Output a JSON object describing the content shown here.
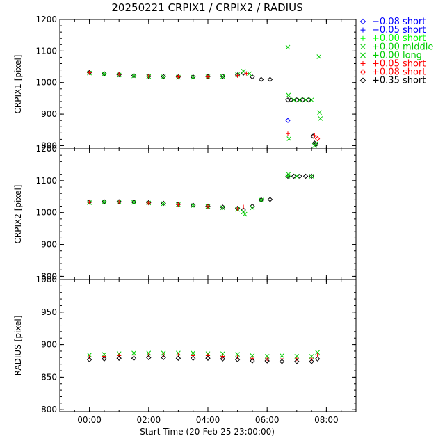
{
  "chart_data": {
    "type": "scatter",
    "title": "20250221 CRPIX1 / CRPIX2 / RADIUS",
    "xlabel": "Start Time (20-Feb-25 23:00:00)",
    "x_unit": "hours since 23:00:00",
    "xlim": [
      -1.0,
      9.0
    ],
    "x_ticks": [
      {
        "value": 0,
        "label": "00:00"
      },
      {
        "value": 2,
        "label": "02:00"
      },
      {
        "value": 4,
        "label": "04:00"
      },
      {
        "value": 6,
        "label": "06:00"
      },
      {
        "value": 8,
        "label": "08:00"
      }
    ],
    "legend": {
      "placement": "right",
      "entries": [
        {
          "symbol": "diamond",
          "label": "−0.08 short",
          "color": "#0000ff"
        },
        {
          "symbol": "plus",
          "label": "−0.05 short",
          "color": "#0000ff"
        },
        {
          "symbol": "plus",
          "label": "+0.00 short",
          "color": "#00ff00"
        },
        {
          "symbol": "cross",
          "label": "+0.00 middle",
          "color": "#00cc00"
        },
        {
          "symbol": "cross",
          "label": "+0.00 long",
          "color": "#00cc00"
        },
        {
          "symbol": "plus",
          "label": "+0.05 short",
          "color": "#ff0000"
        },
        {
          "symbol": "diamond",
          "label": "+0.08 short",
          "color": "#ff0000"
        },
        {
          "symbol": "diamond",
          "label": "+0.35 short",
          "color": "#000000"
        }
      ]
    },
    "panels": [
      {
        "ylabel": "CRPIX1 [pixel]",
        "ylim": [
          790,
          1200
        ],
        "y_ticks": [
          800,
          900,
          1000,
          1100,
          1200
        ],
        "series": [
          {
            "symbol": "diamond",
            "color": "#000000",
            "x": [
              0,
              0.5,
              1,
              1.5,
              2,
              2.5,
              3,
              3.5,
              4,
              4.5,
              5,
              5.2,
              5.5,
              5.8,
              6.1,
              6.7,
              6.8,
              7.0,
              7.2,
              7.4,
              7.55,
              7.6,
              7.65
            ],
            "y": [
              1032,
              1028,
              1025,
              1022,
              1020,
              1019,
              1018,
              1018,
              1019,
              1020,
              1024,
              1030,
              1018,
              1010,
              1010,
              945,
              945,
              945,
              945,
              945,
              830,
              808,
              804
            ]
          },
          {
            "symbol": "cross",
            "color": "#00cc00",
            "x": [
              0,
              0.5,
              1,
              1.5,
              2,
              2.5,
              3,
              3.5,
              4,
              4.5,
              5,
              5.2,
              5.4,
              6.7,
              6.72,
              6.74,
              6.9,
              7.1,
              7.3,
              7.5,
              7.6,
              7.65,
              7.75,
              7.77,
              7.8
            ],
            "y": [
              1030,
              1027,
              1024,
              1021,
              1019,
              1018,
              1017,
              1017,
              1018,
              1019,
              1025,
              1036,
              1028,
              1112,
              960,
              822,
              945,
              945,
              945,
              945,
              800,
              806,
              1082,
              905,
              886
            ]
          },
          {
            "symbol": "plus",
            "color": "#ff0000",
            "x": [
              0,
              1,
              2,
              3,
              4,
              5,
              5.3,
              6.7,
              7.6
            ],
            "y": [
              1031,
              1026,
              1021,
              1018,
              1018,
              1022,
              1029,
              838,
              832
            ]
          },
          {
            "symbol": "diamond",
            "color": "#ff0000",
            "x": [
              7.7
            ],
            "y": [
              822
            ]
          },
          {
            "symbol": "diamond",
            "color": "#0000ff",
            "x": [
              6.7
            ],
            "y": [
              880
            ]
          }
        ]
      },
      {
        "ylabel": "CRPIX2 [pixel]",
        "ylim": [
          790,
          1200
        ],
        "y_ticks": [
          800,
          900,
          1000,
          1100,
          1200
        ],
        "series": [
          {
            "symbol": "diamond",
            "color": "#000000",
            "x": [
              0,
              0.5,
              1,
              1.5,
              2,
              2.5,
              3,
              3.5,
              4,
              4.5,
              5,
              5.2,
              5.5,
              5.8,
              6.1,
              6.7,
              6.9,
              7.1,
              7.3,
              7.5
            ],
            "y": [
              1033,
              1034,
              1034,
              1033,
              1031,
              1029,
              1026,
              1023,
              1020,
              1017,
              1013,
              1008,
              1020,
              1040,
              1041,
              1114,
              1114,
              1114,
              1114,
              1114
            ]
          },
          {
            "symbol": "cross",
            "color": "#00cc00",
            "x": [
              0,
              0.5,
              1,
              1.5,
              2,
              2.5,
              3,
              3.5,
              4,
              4.5,
              5,
              5.2,
              5.25,
              5.5,
              5.8,
              6.7,
              6.72,
              7.0,
              7.5
            ],
            "y": [
              1031,
              1033,
              1033,
              1032,
              1030,
              1028,
              1025,
              1022,
              1019,
              1015,
              1010,
              1002,
              995,
              1015,
              1039,
              1114,
              1120,
              1114,
              1114
            ]
          },
          {
            "symbol": "plus",
            "color": "#ff0000",
            "x": [
              0,
              1,
              2,
              3,
              4,
              5,
              5.2
            ],
            "y": [
              1032,
              1033,
              1030,
              1025,
              1019,
              1012,
              1018
            ]
          }
        ]
      },
      {
        "ylabel": "RADIUS [pixel]",
        "ylim": [
          797,
          1000
        ],
        "y_ticks": [
          800,
          850,
          900,
          950,
          1000
        ],
        "series": [
          {
            "symbol": "cross",
            "color": "#00cc00",
            "x": [
              0,
              0.5,
              1,
              1.5,
              2,
              2.5,
              3,
              3.5,
              4,
              4.5,
              5,
              5.5,
              6,
              6.5,
              7,
              7.5,
              7.7
            ],
            "y": [
              884,
              885,
              886,
              887,
              887,
              887,
              887,
              887,
              886,
              886,
              885,
              883,
              882,
              883,
              882,
              882,
              888
            ]
          },
          {
            "symbol": "plus",
            "color": "#ff0000",
            "x": [
              0,
              0.5,
              1,
              1.5,
              2,
              2.5,
              3,
              3.5,
              4,
              4.5,
              5,
              5.5,
              6,
              6.5,
              7,
              7.5,
              7.7
            ],
            "y": [
              881,
              882,
              883,
              884,
              884,
              884,
              884,
              883,
              883,
              882,
              881,
              879,
              878,
              878,
              878,
              878,
              884
            ]
          },
          {
            "symbol": "diamond",
            "color": "#000000",
            "x": [
              0,
              0.5,
              1,
              1.5,
              2,
              2.5,
              3,
              3.5,
              4,
              4.5,
              5,
              5.5,
              6,
              6.5,
              7,
              7.5,
              7.7
            ],
            "y": [
              877,
              878,
              879,
              879,
              880,
              880,
              879,
              879,
              879,
              878,
              877,
              875,
              875,
              874,
              874,
              874,
              878
            ]
          }
        ]
      }
    ]
  }
}
